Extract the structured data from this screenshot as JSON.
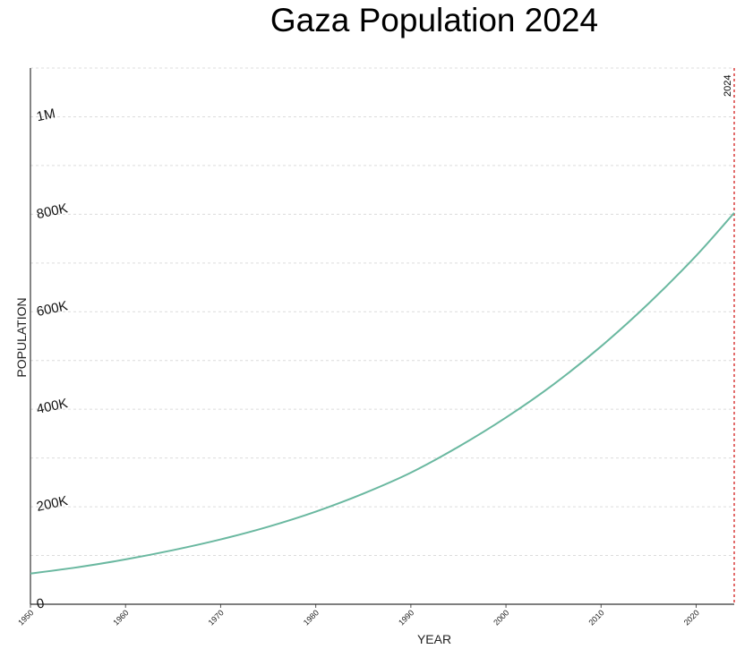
{
  "chart_data": {
    "type": "line",
    "title": "Gaza Population 2024",
    "xlabel": "YEAR",
    "ylabel": "POPULATION",
    "xlim": [
      1950,
      2024
    ],
    "ylim": [
      0,
      1100000
    ],
    "grid": true,
    "x_ticks": [
      {
        "value": 1950,
        "label": "1950"
      },
      {
        "value": 1960,
        "label": "1960"
      },
      {
        "value": 1970,
        "label": "1970"
      },
      {
        "value": 1980,
        "label": "1980"
      },
      {
        "value": 1990,
        "label": "1990"
      },
      {
        "value": 2000,
        "label": "2000"
      },
      {
        "value": 2010,
        "label": "2010"
      },
      {
        "value": 2020,
        "label": "2020"
      }
    ],
    "y_ticks": [
      {
        "value": 0,
        "label": "0"
      },
      {
        "value": 200000,
        "label": "200K"
      },
      {
        "value": 400000,
        "label": "400K"
      },
      {
        "value": 600000,
        "label": "600K"
      },
      {
        "value": 800000,
        "label": "800K"
      },
      {
        "value": 1000000,
        "label": "1M"
      }
    ],
    "y_grid_step": 100000,
    "marker": {
      "x": 2024,
      "label": "2024",
      "color": "#d93b3b"
    },
    "series": [
      {
        "name": "Gaza Population",
        "color": "#6ab8a0",
        "x": [
          1950,
          1955,
          1960,
          1965,
          1970,
          1975,
          1980,
          1985,
          1990,
          1995,
          2000,
          2005,
          2010,
          2015,
          2020,
          2024
        ],
        "values": [
          63000,
          76000,
          92000,
          111000,
          133000,
          159000,
          190000,
          227000,
          270000,
          323000,
          383000,
          451000,
          529000,
          617000,
          715000,
          803000
        ]
      }
    ]
  }
}
